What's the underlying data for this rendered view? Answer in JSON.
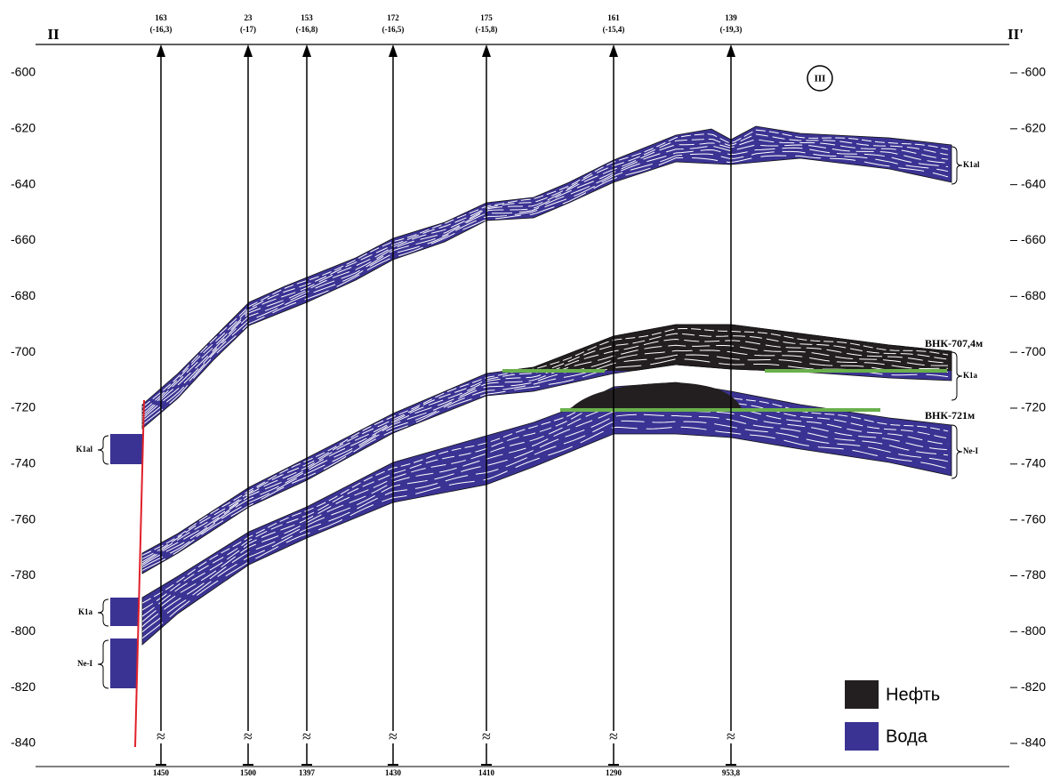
{
  "section": {
    "left_label": "II",
    "right_label": "II'",
    "circle_label": "III"
  },
  "depth_ticks": [
    "-600",
    "-620",
    "-640",
    "-660",
    "-680",
    "-700",
    "-720",
    "-740",
    "-760",
    "-780",
    "-800",
    "-820",
    "-840"
  ],
  "wells": [
    {
      "id": "163",
      "value": "(-16,3)",
      "depth": "1450"
    },
    {
      "id": "23",
      "value": "(-17)",
      "depth": "1500"
    },
    {
      "id": "153",
      "value": "(-16,8)",
      "depth": "1397"
    },
    {
      "id": "172",
      "value": "(-16,5)",
      "depth": "1430"
    },
    {
      "id": "175",
      "value": "(-15,8)",
      "depth": "1410"
    },
    {
      "id": "161",
      "value": "(-15,4)",
      "depth": "1290"
    },
    {
      "id": "139",
      "value": "(-19,3)",
      "depth": "953,8"
    }
  ],
  "formations": {
    "left": [
      "K1al",
      "K1a",
      "Ne-I"
    ],
    "right": [
      "K1al",
      "K1a",
      "Ne-I"
    ]
  },
  "contacts": [
    "ВНК-707,4м",
    "ВНК-721м"
  ],
  "legend": [
    {
      "label": "Нефть",
      "color": "#231f20"
    },
    {
      "label": "Вода",
      "color": "#3b3393"
    }
  ]
}
